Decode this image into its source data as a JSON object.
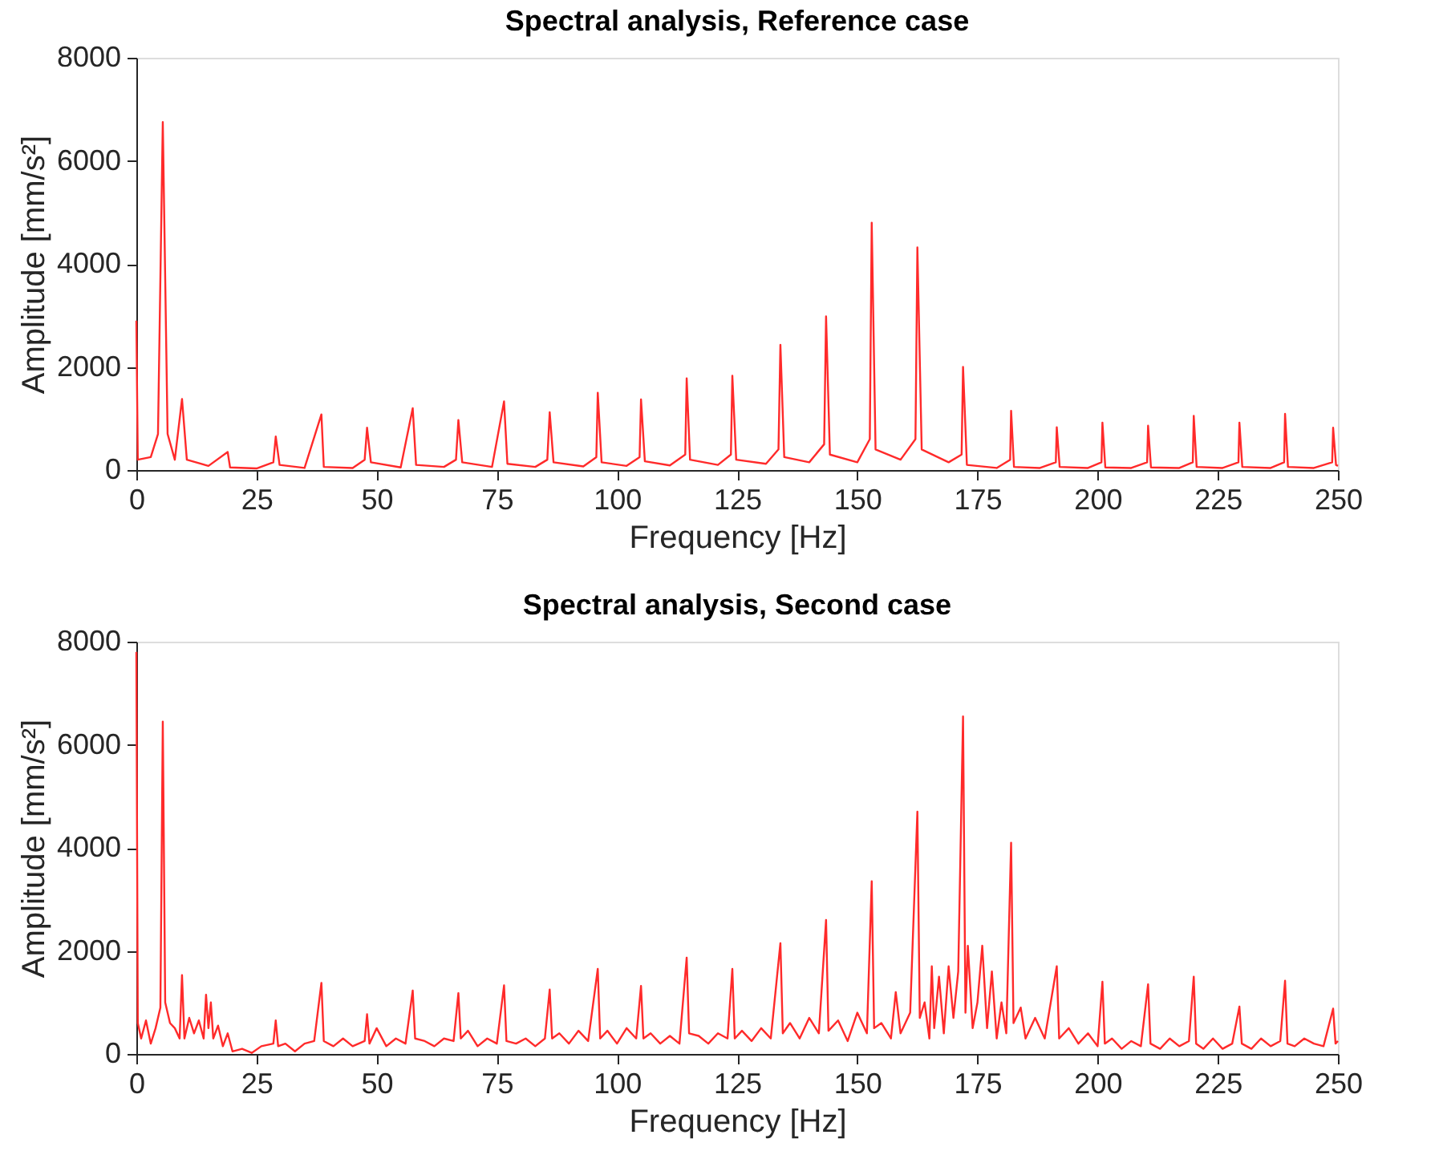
{
  "chart_data": [
    {
      "type": "line",
      "title": "Spectral analysis, Reference case",
      "xlabel": "Frequency [Hz]",
      "ylabel": "Amplitude [mm/s²]",
      "xlim": [
        0,
        250
      ],
      "xticks": [
        0,
        25,
        50,
        75,
        100,
        125,
        150,
        175,
        200,
        225,
        250
      ],
      "ylim": [
        0,
        8000
      ],
      "yticks": [
        0,
        2000,
        4000,
        6000,
        8000
      ],
      "grid": false,
      "series": [
        {
          "color": "#ff2a2a",
          "x": [
            0,
            0.3,
            3,
            4.5,
            5.5,
            6.5,
            8,
            9.5,
            10.5,
            15,
            19,
            19.5,
            25,
            28.5,
            29,
            29.8,
            35,
            38.5,
            39,
            45,
            47.5,
            48,
            48.8,
            55,
            57.5,
            58.2,
            64,
            66.5,
            67,
            67.8,
            74,
            76.5,
            77.2,
            83,
            85.5,
            86,
            86.8,
            93,
            95.7,
            96,
            96.8,
            102,
            104.7,
            105,
            105.8,
            111,
            114.2,
            114.5,
            115.2,
            121,
            123.7,
            124,
            124.8,
            131,
            133.6,
            134,
            134.8,
            140,
            143.1,
            143.5,
            144.3,
            150,
            152.6,
            153,
            153.8,
            159,
            162.1,
            162.5,
            163.4,
            169,
            171.7,
            172,
            172.8,
            179,
            181.8,
            182,
            182.6,
            188,
            191.3,
            191.5,
            192.1,
            198,
            200.8,
            201,
            201.6,
            207,
            210.3,
            210.5,
            211.1,
            217,
            219.8,
            220,
            220.6,
            226,
            229.3,
            229.5,
            230.1,
            236,
            238.8,
            239,
            239.6,
            245,
            248.8,
            249,
            249.6,
            250
          ],
          "values": [
            2900,
            200,
            250,
            700,
            6750,
            700,
            200,
            1380,
            200,
            80,
            350,
            50,
            30,
            150,
            650,
            100,
            40,
            1080,
            60,
            40,
            200,
            820,
            150,
            50,
            1200,
            100,
            60,
            200,
            970,
            150,
            60,
            1330,
            120,
            60,
            200,
            1120,
            150,
            70,
            250,
            1500,
            150,
            80,
            250,
            1370,
            170,
            90,
            300,
            1780,
            200,
            100,
            300,
            1830,
            200,
            120,
            400,
            2430,
            250,
            150,
            500,
            2980,
            300,
            150,
            600,
            4800,
            400,
            200,
            600,
            4320,
            400,
            150,
            300,
            2000,
            100,
            40,
            200,
            1150,
            60,
            40,
            150,
            830,
            60,
            40,
            150,
            920,
            50,
            40,
            150,
            860,
            50,
            40,
            150,
            1050,
            60,
            40,
            150,
            920,
            60,
            40,
            150,
            1090,
            60,
            40,
            150,
            820,
            100,
            80
          ]
        }
      ]
    },
    {
      "type": "line",
      "title": "Spectral analysis, Second case",
      "xlabel": "Frequency [Hz]",
      "ylabel": "Amplitude [mm/s²]",
      "xlim": [
        0,
        250
      ],
      "xticks": [
        0,
        25,
        50,
        75,
        100,
        125,
        150,
        175,
        200,
        225,
        250
      ],
      "ylim": [
        0,
        8000
      ],
      "yticks": [
        0,
        2000,
        4000,
        6000,
        8000
      ],
      "grid": false,
      "series": [
        {
          "color": "#ff2a2a",
          "x": [
            0,
            0.3,
            1,
            2,
            3,
            4,
            5,
            5.5,
            6,
            7,
            8,
            9,
            9.5,
            10,
            11,
            12,
            13,
            14,
            14.5,
            15,
            15.5,
            16,
            17,
            18,
            19,
            20,
            22,
            24,
            26,
            28.5,
            29,
            29.5,
            31,
            33,
            35,
            37,
            38.5,
            39,
            41,
            43,
            45,
            47.5,
            48,
            48.5,
            50,
            52,
            54,
            56,
            57.5,
            58,
            60,
            62,
            64,
            66,
            67,
            67.5,
            69,
            71,
            73,
            75,
            76.5,
            77,
            79,
            81,
            83,
            85,
            86,
            86.5,
            88,
            90,
            92,
            94,
            96,
            96.5,
            98,
            100,
            102,
            104,
            105,
            105.5,
            107,
            109,
            111,
            113,
            114.5,
            115,
            117,
            119,
            121,
            123,
            124,
            124.5,
            126,
            128,
            130,
            132,
            134,
            134.5,
            136,
            138,
            140,
            142,
            143.5,
            144,
            146,
            148,
            150,
            152,
            153,
            153.5,
            155,
            157,
            158,
            159,
            161,
            162.5,
            163,
            164,
            165,
            165.5,
            166,
            167,
            168,
            169,
            170,
            171,
            172,
            172.5,
            173,
            174,
            175,
            176,
            177,
            178,
            179,
            180,
            181,
            182,
            182.5,
            184,
            185,
            187,
            189,
            191.5,
            192,
            194,
            196,
            198,
            200,
            201,
            201.5,
            203,
            205,
            207,
            209,
            210.5,
            211,
            213,
            215,
            217,
            219,
            220,
            220.5,
            222,
            224,
            226,
            228,
            229.5,
            230,
            232,
            234,
            236,
            238,
            239,
            239.5,
            241,
            243,
            245,
            247,
            249,
            249.5,
            250
          ],
          "values": [
            7800,
            600,
            300,
            650,
            200,
            500,
            900,
            6450,
            1000,
            600,
            500,
            300,
            1530,
            300,
            700,
            400,
            650,
            300,
            1150,
            500,
            1000,
            300,
            550,
            150,
            400,
            50,
            100,
            20,
            150,
            200,
            650,
            150,
            200,
            50,
            200,
            250,
            1380,
            250,
            150,
            300,
            150,
            250,
            770,
            200,
            500,
            150,
            300,
            200,
            1230,
            300,
            250,
            150,
            300,
            250,
            1180,
            300,
            450,
            150,
            300,
            200,
            1330,
            250,
            200,
            300,
            150,
            300,
            1250,
            300,
            400,
            200,
            450,
            250,
            1650,
            300,
            450,
            200,
            500,
            300,
            1320,
            300,
            400,
            200,
            350,
            200,
            1870,
            400,
            350,
            200,
            400,
            300,
            1650,
            300,
            450,
            250,
            500,
            300,
            2150,
            400,
            600,
            300,
            700,
            400,
            2600,
            450,
            650,
            250,
            800,
            400,
            3350,
            500,
            600,
            300,
            1200,
            400,
            800,
            4700,
            700,
            1000,
            300,
            1700,
            500,
            1500,
            400,
            1700,
            700,
            1600,
            6550,
            800,
            2100,
            500,
            1000,
            2100,
            500,
            1600,
            300,
            1000,
            400,
            4100,
            600,
            900,
            300,
            700,
            300,
            1700,
            300,
            500,
            200,
            400,
            150,
            1400,
            200,
            300,
            100,
            250,
            150,
            1350,
            200,
            100,
            300,
            150,
            250,
            1500,
            200,
            100,
            300,
            100,
            200,
            920,
            200,
            100,
            300,
            150,
            250,
            1420,
            200,
            150,
            300,
            200,
            150,
            880,
            200,
            250
          ]
        }
      ]
    }
  ]
}
